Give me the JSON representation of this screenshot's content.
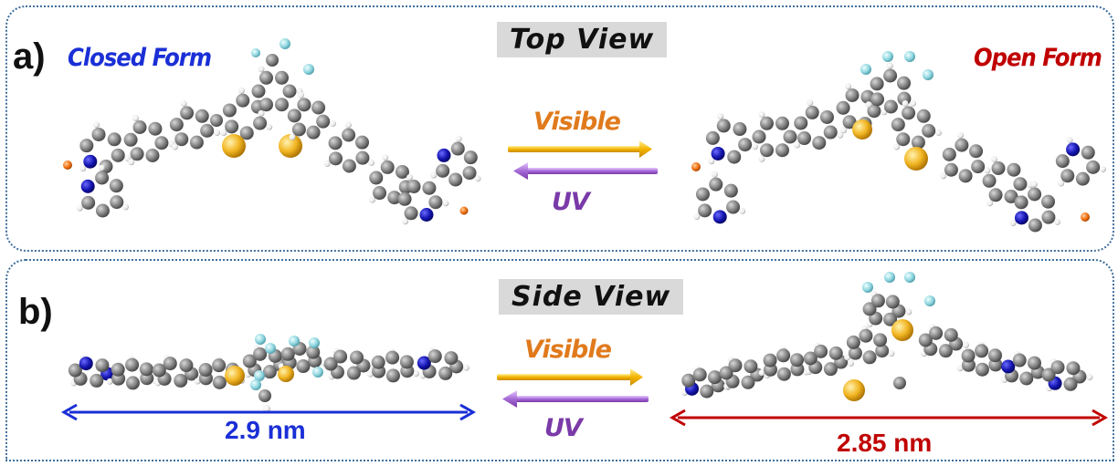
{
  "panel_a": {
    "letter": "a)",
    "title": "Top View",
    "closed_label": "Closed Form",
    "open_label": "Open Form",
    "forward_label": "Visible",
    "reverse_label": "UV"
  },
  "panel_b": {
    "letter": "b)",
    "title": "Side View",
    "forward_label": "Visible",
    "reverse_label": "UV",
    "closed_length": "2.9 nm",
    "open_length": "2.85 nm"
  },
  "colors": {
    "frame": "#3f6f9c",
    "closed_label": "#1a2fd6",
    "open_label": "#c00000",
    "visible": "#e07a1c",
    "uv": "#7a3aa8",
    "closed_dim": "#1a2fd6",
    "open_dim": "#c00000",
    "carbon": "#7f7f7f",
    "nitrogen": "#1f1fb8",
    "sulfur": "#f2b623",
    "fluorine": "#8fd6e0",
    "hydrogen": "#ffffff"
  }
}
